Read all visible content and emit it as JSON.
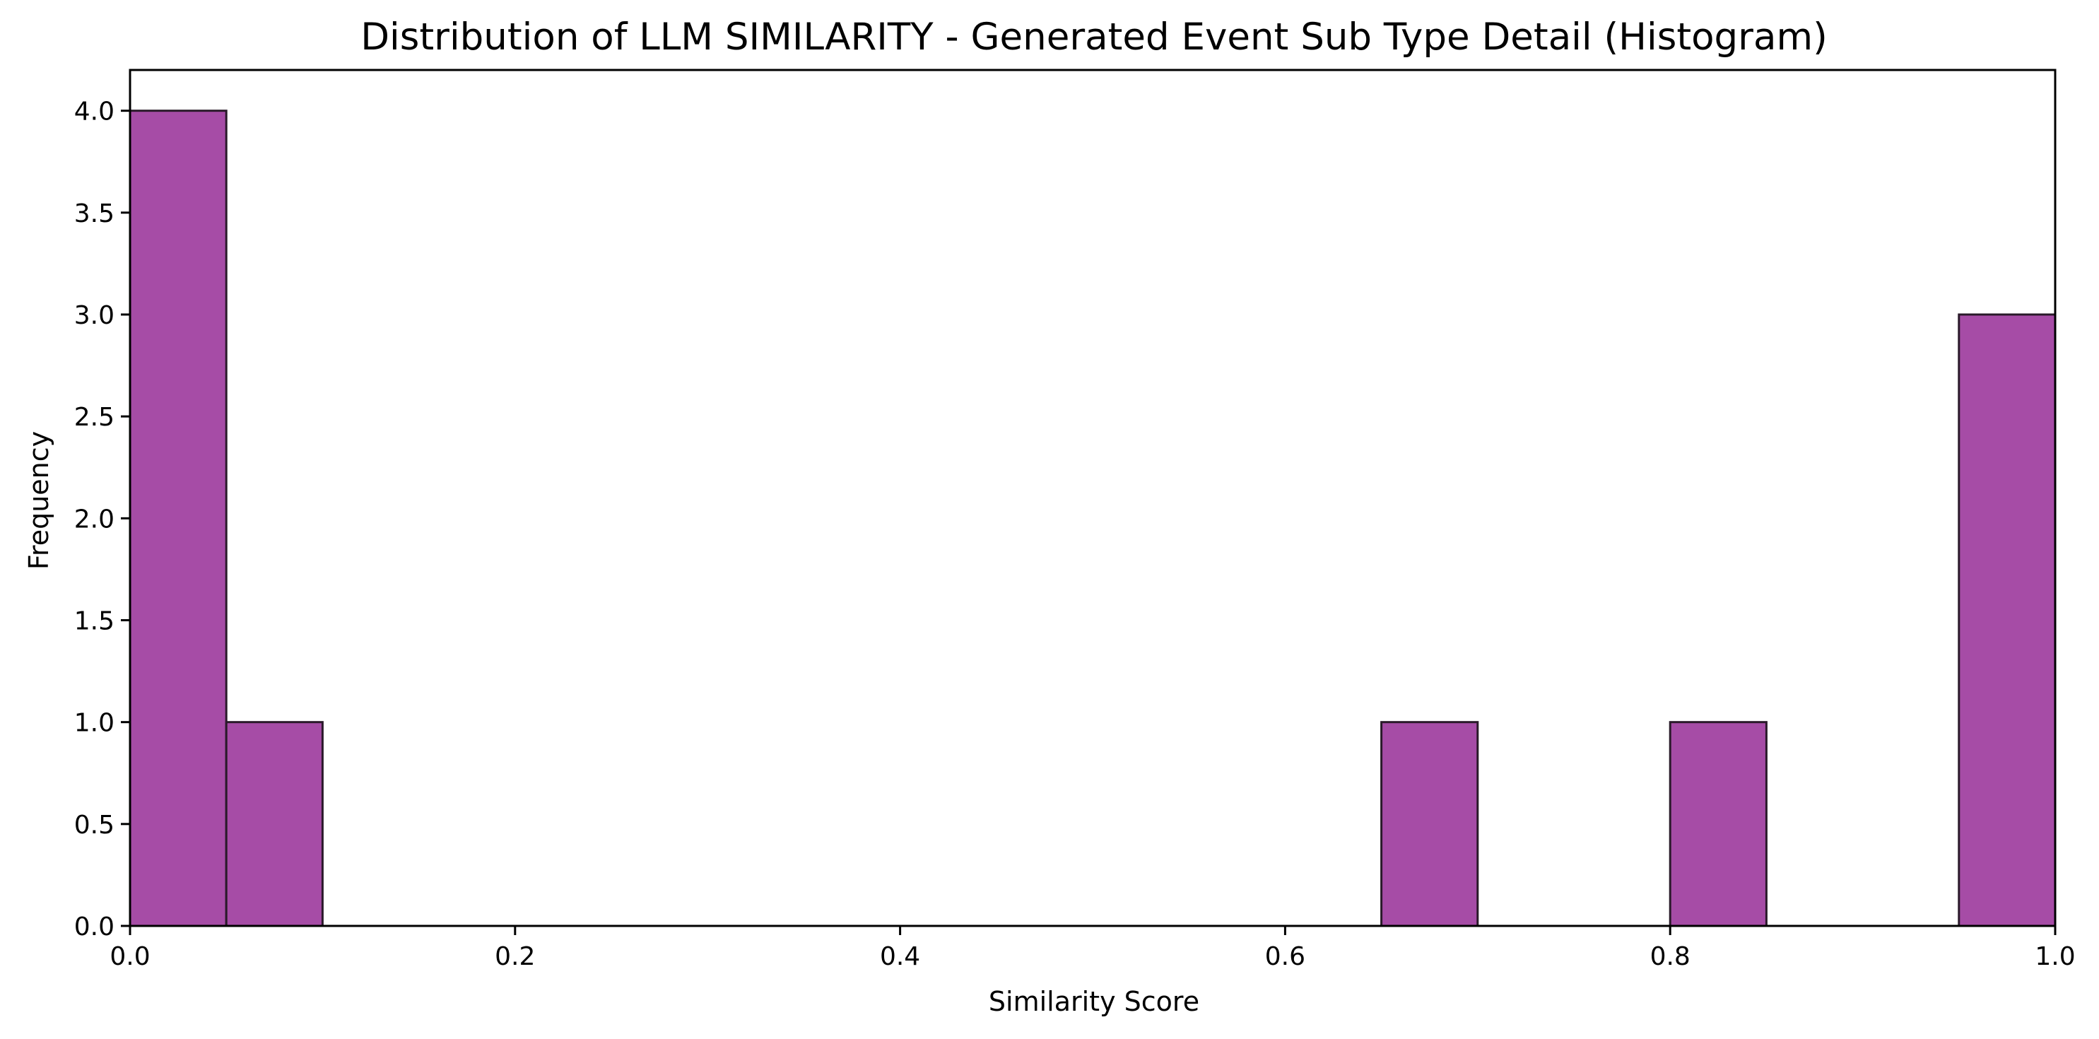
{
  "chart_data": {
    "type": "bar",
    "title": "Distribution of LLM SIMILARITY - Generated Event Sub Type Detail (Histogram)",
    "xlabel": "Similarity Score",
    "ylabel": "Frequency",
    "xlim": [
      0.0,
      1.0
    ],
    "ylim": [
      0.0,
      4.2
    ],
    "bin_width": 0.05,
    "bins": [
      {
        "x0": 0.0,
        "x1": 0.05,
        "count": 4
      },
      {
        "x0": 0.05,
        "x1": 0.1,
        "count": 1
      },
      {
        "x0": 0.65,
        "x1": 0.7,
        "count": 1
      },
      {
        "x0": 0.8,
        "x1": 0.85,
        "count": 1
      },
      {
        "x0": 0.95,
        "x1": 1.0,
        "count": 3
      }
    ],
    "xticks": [
      "0.0",
      "0.2",
      "0.4",
      "0.6",
      "0.8",
      "1.0"
    ],
    "xtick_values": [
      0.0,
      0.2,
      0.4,
      0.6,
      0.8,
      1.0
    ],
    "yticks": [
      "0.0",
      "0.5",
      "1.0",
      "1.5",
      "2.0",
      "2.5",
      "3.0",
      "3.5",
      "4.0"
    ],
    "ytick_values": [
      0.0,
      0.5,
      1.0,
      1.5,
      2.0,
      2.5,
      3.0,
      3.5,
      4.0
    ],
    "grid": false,
    "legend": "none",
    "colors": {
      "bar_fill": "#a64ca6",
      "bar_edge": "#2a1a2a"
    }
  }
}
